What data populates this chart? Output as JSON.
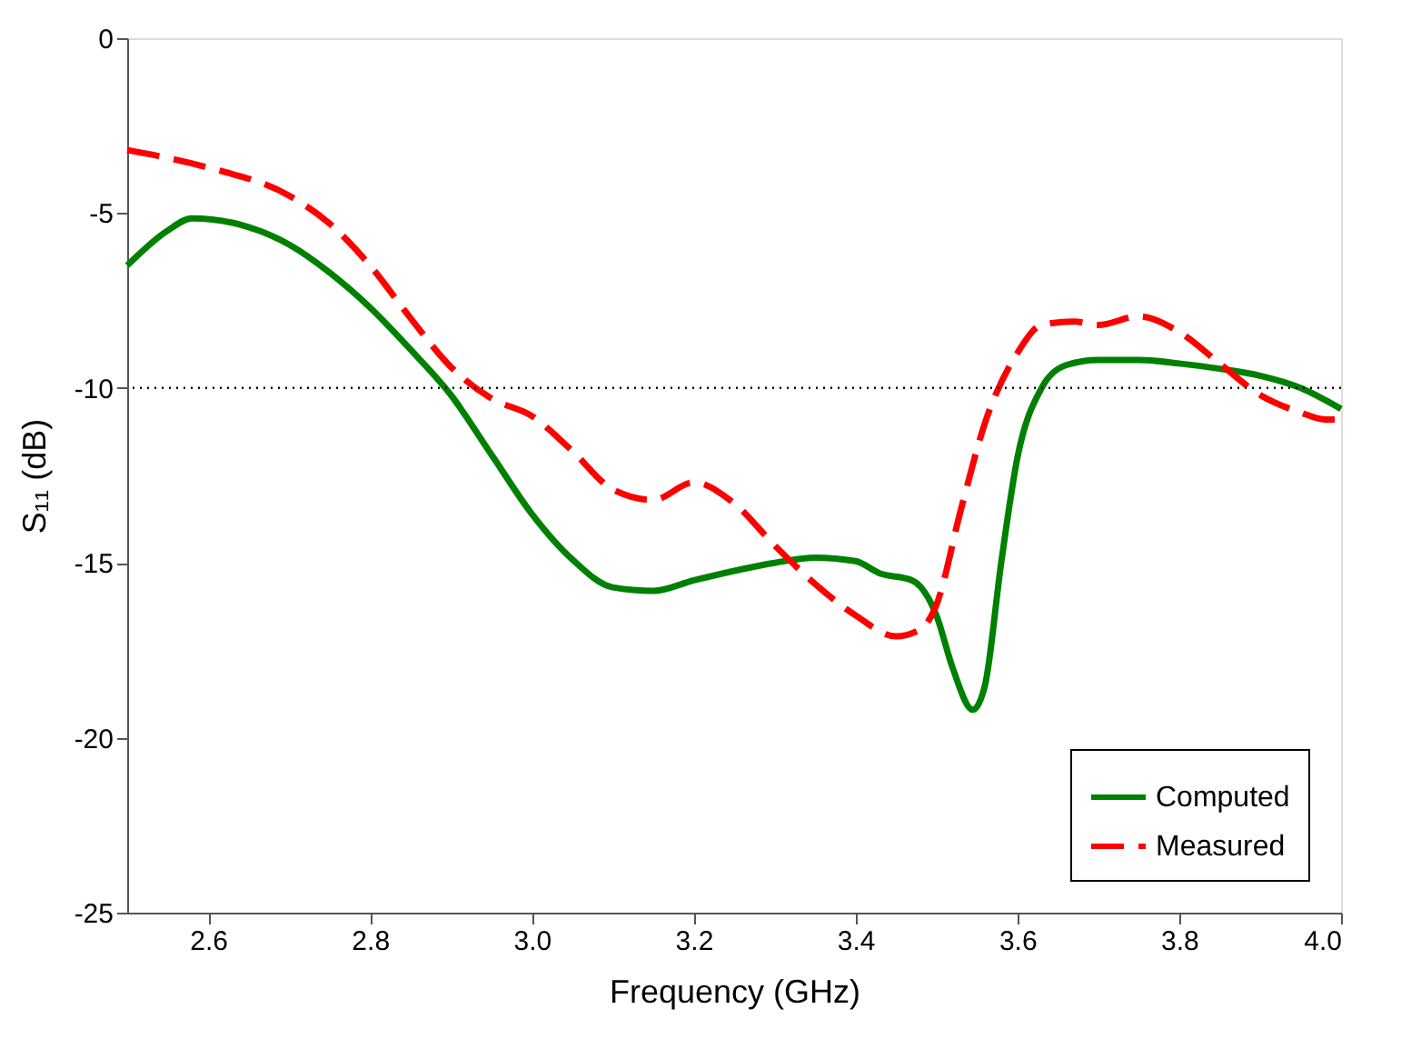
{
  "chart_data": {
    "type": "line",
    "xlabel": "Frequency (GHz)",
    "ylabel": "S₁₁ (dB)",
    "xlim": [
      2.5,
      4.0
    ],
    "xticks": [
      {
        "value": 2.6,
        "label": "2.6"
      },
      {
        "value": 2.8,
        "label": "2.8"
      },
      {
        "value": 3.0,
        "label": "3.0"
      },
      {
        "value": 3.2,
        "label": "3.2"
      },
      {
        "value": 3.4,
        "label": "3.4"
      },
      {
        "value": 3.6,
        "label": "3.6"
      },
      {
        "value": 3.8,
        "label": "3.8"
      },
      {
        "value": 4.0,
        "label": "4.0"
      }
    ],
    "ylim": [
      -25,
      0
    ],
    "yticks": [
      -25,
      -20,
      -15,
      -10,
      -5,
      0
    ],
    "grid": false,
    "legend": "bottom right",
    "ref_lines": [
      {
        "axis": "y",
        "value": -10,
        "label": null,
        "color": "#000000",
        "line_style": "dotted"
      }
    ],
    "series": [
      {
        "name": "Computed",
        "color": "#008000",
        "line_style": "solid",
        "x": [
          2.5,
          2.55,
          2.58,
          2.65,
          2.7,
          2.75,
          2.8,
          2.85,
          2.9,
          2.95,
          3.0,
          3.05,
          3.1,
          3.15,
          3.2,
          3.3,
          3.35,
          3.4,
          3.43,
          3.47,
          3.5,
          3.52,
          3.545,
          3.56,
          3.58,
          3.6,
          3.63,
          3.66,
          3.7,
          3.75,
          3.8,
          3.85,
          3.9,
          3.95,
          4.0
        ],
        "values": [
          -6.5,
          -5.5,
          -5.15,
          -5.4,
          -5.9,
          -6.7,
          -7.7,
          -8.9,
          -10.2,
          -11.9,
          -13.6,
          -14.9,
          -15.7,
          -15.8,
          -15.5,
          -15.0,
          -14.85,
          -14.95,
          -15.3,
          -15.5,
          -16.5,
          -18,
          -19.2,
          -18.5,
          -15,
          -12,
          -10,
          -9.35,
          -9.2,
          -9.2,
          -9.3,
          -9.45,
          -9.65,
          -10.0,
          -10.6
        ]
      },
      {
        "name": "Measured",
        "color": "#ff0000",
        "line_style": "dashed",
        "x": [
          2.5,
          2.6,
          2.7,
          2.75,
          2.8,
          2.85,
          2.9,
          2.95,
          3.0,
          3.05,
          3.1,
          3.15,
          3.2,
          3.25,
          3.3,
          3.35,
          3.4,
          3.45,
          3.48,
          3.5,
          3.53,
          3.56,
          3.6,
          3.63,
          3.67,
          3.7,
          3.75,
          3.8,
          3.85,
          3.9,
          3.95,
          3.98,
          4.0
        ],
        "values": [
          -3.2,
          -3.7,
          -4.5,
          -5.3,
          -6.5,
          -8.0,
          -9.4,
          -10.3,
          -10.8,
          -11.8,
          -12.9,
          -13.2,
          -12.7,
          -13.3,
          -14.5,
          -15.6,
          -16.5,
          -17.1,
          -16.9,
          -16.2,
          -13.5,
          -11,
          -9.0,
          -8.2,
          -8.1,
          -8.2,
          -7.95,
          -8.4,
          -9.3,
          -10.2,
          -10.7,
          -10.9,
          -10.9
        ]
      }
    ]
  }
}
